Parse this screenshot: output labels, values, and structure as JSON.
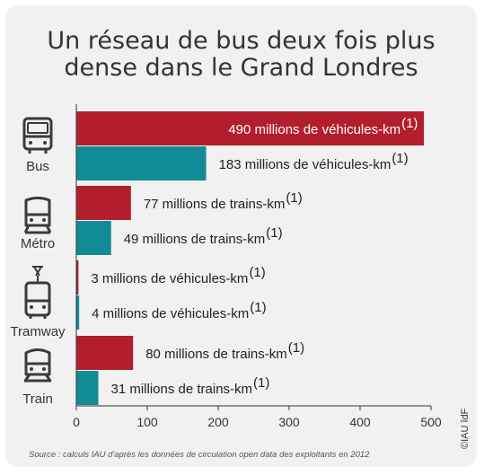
{
  "chart_data": {
    "type": "bar",
    "orientation": "horizontal",
    "title_line1": "Un réseau de bus deux fois plus",
    "title_line2": "dense dans le Grand Londres",
    "categories": [
      "Bus",
      "Métro",
      "Tramway",
      "Train"
    ],
    "icons": [
      "bus-icon",
      "metro-icon",
      "tramway-icon",
      "train-icon"
    ],
    "series": [
      {
        "color": "#b21e2c",
        "values": [
          490,
          77,
          3,
          80
        ]
      },
      {
        "color": "#118c96",
        "values": [
          183,
          49,
          4,
          31
        ]
      }
    ],
    "bar_labels": [
      [
        "490 millions de véhicules-km",
        "183 millions de véhicules-km"
      ],
      [
        "77 millions de trains-km",
        "49 millions de trains-km"
      ],
      [
        "3 millions de véhicules-km",
        "4 millions de véhicules-km"
      ],
      [
        "80 millions de trains-km",
        "31 millions de trains-km"
      ]
    ],
    "footnote_marker": "(1)",
    "xlim": [
      0,
      500
    ],
    "xticks": [
      0,
      100,
      200,
      300,
      400,
      500
    ],
    "grid": false
  },
  "source": "Source : calculs IAU d'après les données de circulation open data des exploitants en 2012",
  "credit": "©IAU îdF"
}
